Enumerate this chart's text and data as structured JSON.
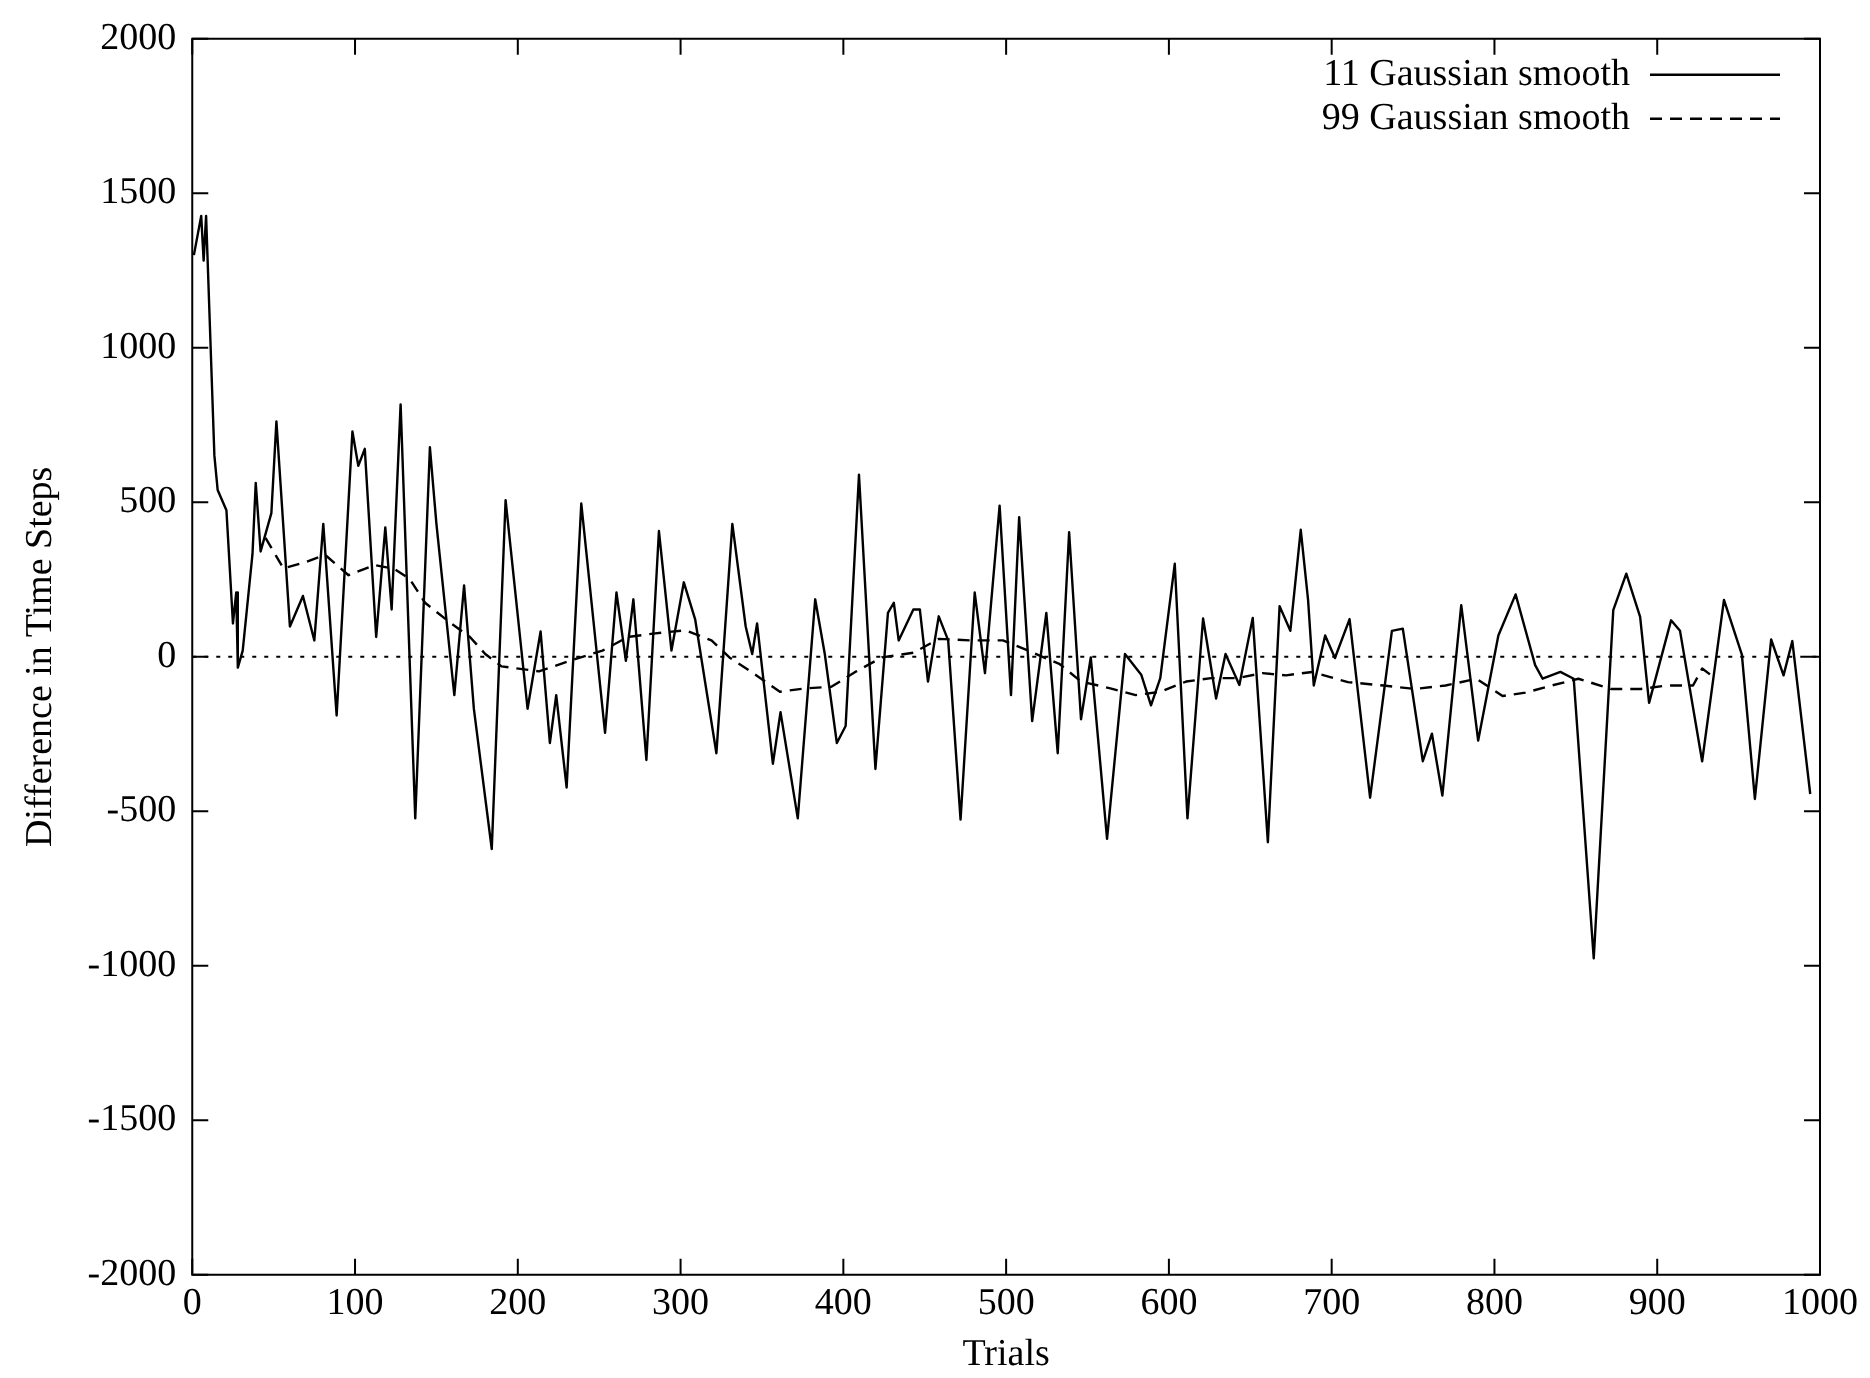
{
  "chart_data": {
    "type": "line",
    "xlabel": "Trials",
    "ylabel": "Difference in Time Steps",
    "xlim": [
      0,
      1000
    ],
    "xticks": [
      0,
      100,
      200,
      300,
      400,
      500,
      600,
      700,
      800,
      900,
      1000
    ],
    "ylim": [
      -2000,
      2000
    ],
    "yticks": [
      -2000,
      -1500,
      -1000,
      -500,
      0,
      500,
      1000,
      1500,
      2000
    ],
    "legend": "top right",
    "grid": false,
    "marker": "none",
    "ref_lines": [
      {
        "axis": "y",
        "value": 0,
        "color": "#000000",
        "line_style": "dotted"
      }
    ],
    "series": [
      {
        "name": "11 Gaussian smooth",
        "color": "#000000",
        "line_style": "solid",
        "x": [
          1,
          5.5,
          7,
          8.5,
          13.6,
          15.6,
          21,
          25,
          27,
          28,
          31,
          37,
          39,
          42,
          48.6,
          51.7,
          60,
          68,
          75,
          80.5,
          88.7,
          98.4,
          102,
          106,
          113,
          118.6,
          122.5,
          128,
          137,
          146,
          150,
          161,
          167,
          173,
          184,
          192.5,
          206,
          214,
          219.7,
          223.6,
          230,
          239,
          253.6,
          260.6,
          266.4,
          271,
          279,
          286.7,
          294.4,
          302,
          309,
          322,
          331.8,
          340,
          344,
          347,
          356.7,
          361.4,
          372,
          382.7,
          388.6,
          396,
          401.4,
          409.6,
          419.7,
          427.4,
          431,
          434,
          443,
          447,
          452,
          458.6,
          464.4,
          472,
          480.7,
          487,
          496,
          503,
          508,
          516,
          524.7,
          531.7,
          538.7,
          546,
          552,
          562,
          573,
          583,
          589,
          594.7,
          603.6,
          611.4,
          621,
          629,
          634.8,
          643.3,
          651.5,
          660.8,
          668,
          674.6,
          681,
          685.5,
          689,
          696,
          702,
          711,
          723.6,
          737,
          743.7,
          756,
          761.6,
          768,
          779.6,
          790,
          802.4,
          813,
          825,
          829.6,
          840.5,
          848.7,
          861,
          873,
          881,
          889.5,
          895,
          908.5,
          914,
          927.6,
          941,
          952,
          960,
          970,
          977.6,
          983,
          994
        ],
        "values": [
          1300,
          1427,
          1282,
          1427,
          651,
          540,
          474,
          108,
          208,
          -35,
          20,
          332,
          563,
          341,
          465,
          762,
          98,
          197,
          53,
          430,
          -190,
          729,
          618,
          673,
          64,
          419,
          153,
          817,
          -523,
          678,
          430,
          -124,
          231,
          -168,
          -622,
          507,
          -168,
          82,
          -279,
          -124,
          -423,
          496,
          -246,
          208,
          -13,
          186,
          -334,
          407,
          20,
          241,
          120,
          -312,
          430,
          98,
          9,
          108,
          -346,
          -179,
          -523,
          186,
          9,
          -279,
          -224,
          589,
          -363,
          142,
          175,
          53,
          153,
          153,
          -80,
          131,
          53,
          -527,
          208,
          -53,
          489,
          -124,
          452,
          -208,
          142,
          -312,
          403,
          -202,
          -2,
          -589,
          9,
          -58,
          -157,
          -69,
          301,
          -523,
          124,
          -135,
          9,
          -91,
          126,
          -600,
          164,
          84,
          411,
          184,
          -93,
          69,
          -4,
          122,
          -456,
          84,
          91,
          -338,
          -249,
          -449,
          167,
          -271,
          69,
          202,
          -27,
          -71,
          -49,
          -71,
          -976,
          151,
          269,
          129,
          -149,
          118,
          84,
          -338,
          184,
          7,
          -460,
          56,
          -60,
          51,
          -444
        ]
      },
      {
        "name": "99 Gaussian smooth",
        "color": "#000000",
        "line_style": "dashed",
        "x": [
          45,
          56,
          70,
          81.6,
          96,
          112,
          124,
          133.6,
          143,
          159,
          170.6,
          180,
          190,
          213,
          232,
          252,
          267.6,
          283,
          303,
          319,
          330,
          346,
          361,
          377,
          392.6,
          408,
          423.6,
          443,
          458.6,
          478,
          498,
          513.6,
          533,
          546,
          564,
          579.6,
          595,
          610.6,
          626,
          642,
          657.4,
          672,
          688,
          710,
          732,
          751,
          770,
          789,
          805,
          819,
          835,
          851.6,
          871.5,
          890,
          906,
          922,
          927.6,
          936
        ],
        "values": [
          385,
          286,
          307,
          330,
          264,
          297,
          285,
          252,
          175,
          108,
          64,
          9,
          -31,
          -47,
          -13,
          20,
          64,
          75,
          86,
          53,
          -2,
          -58,
          -113,
          -102,
          -97,
          -47,
          -2,
          13,
          58,
          53,
          53,
          20,
          -24,
          -80,
          -102,
          -124,
          -113,
          -80,
          -69,
          -69,
          -53,
          -60,
          -49,
          -82,
          -93,
          -104,
          -93,
          -71,
          -127,
          -116,
          -93,
          -71,
          -104,
          -104,
          -93,
          -93,
          -38,
          -71
        ]
      }
    ]
  }
}
